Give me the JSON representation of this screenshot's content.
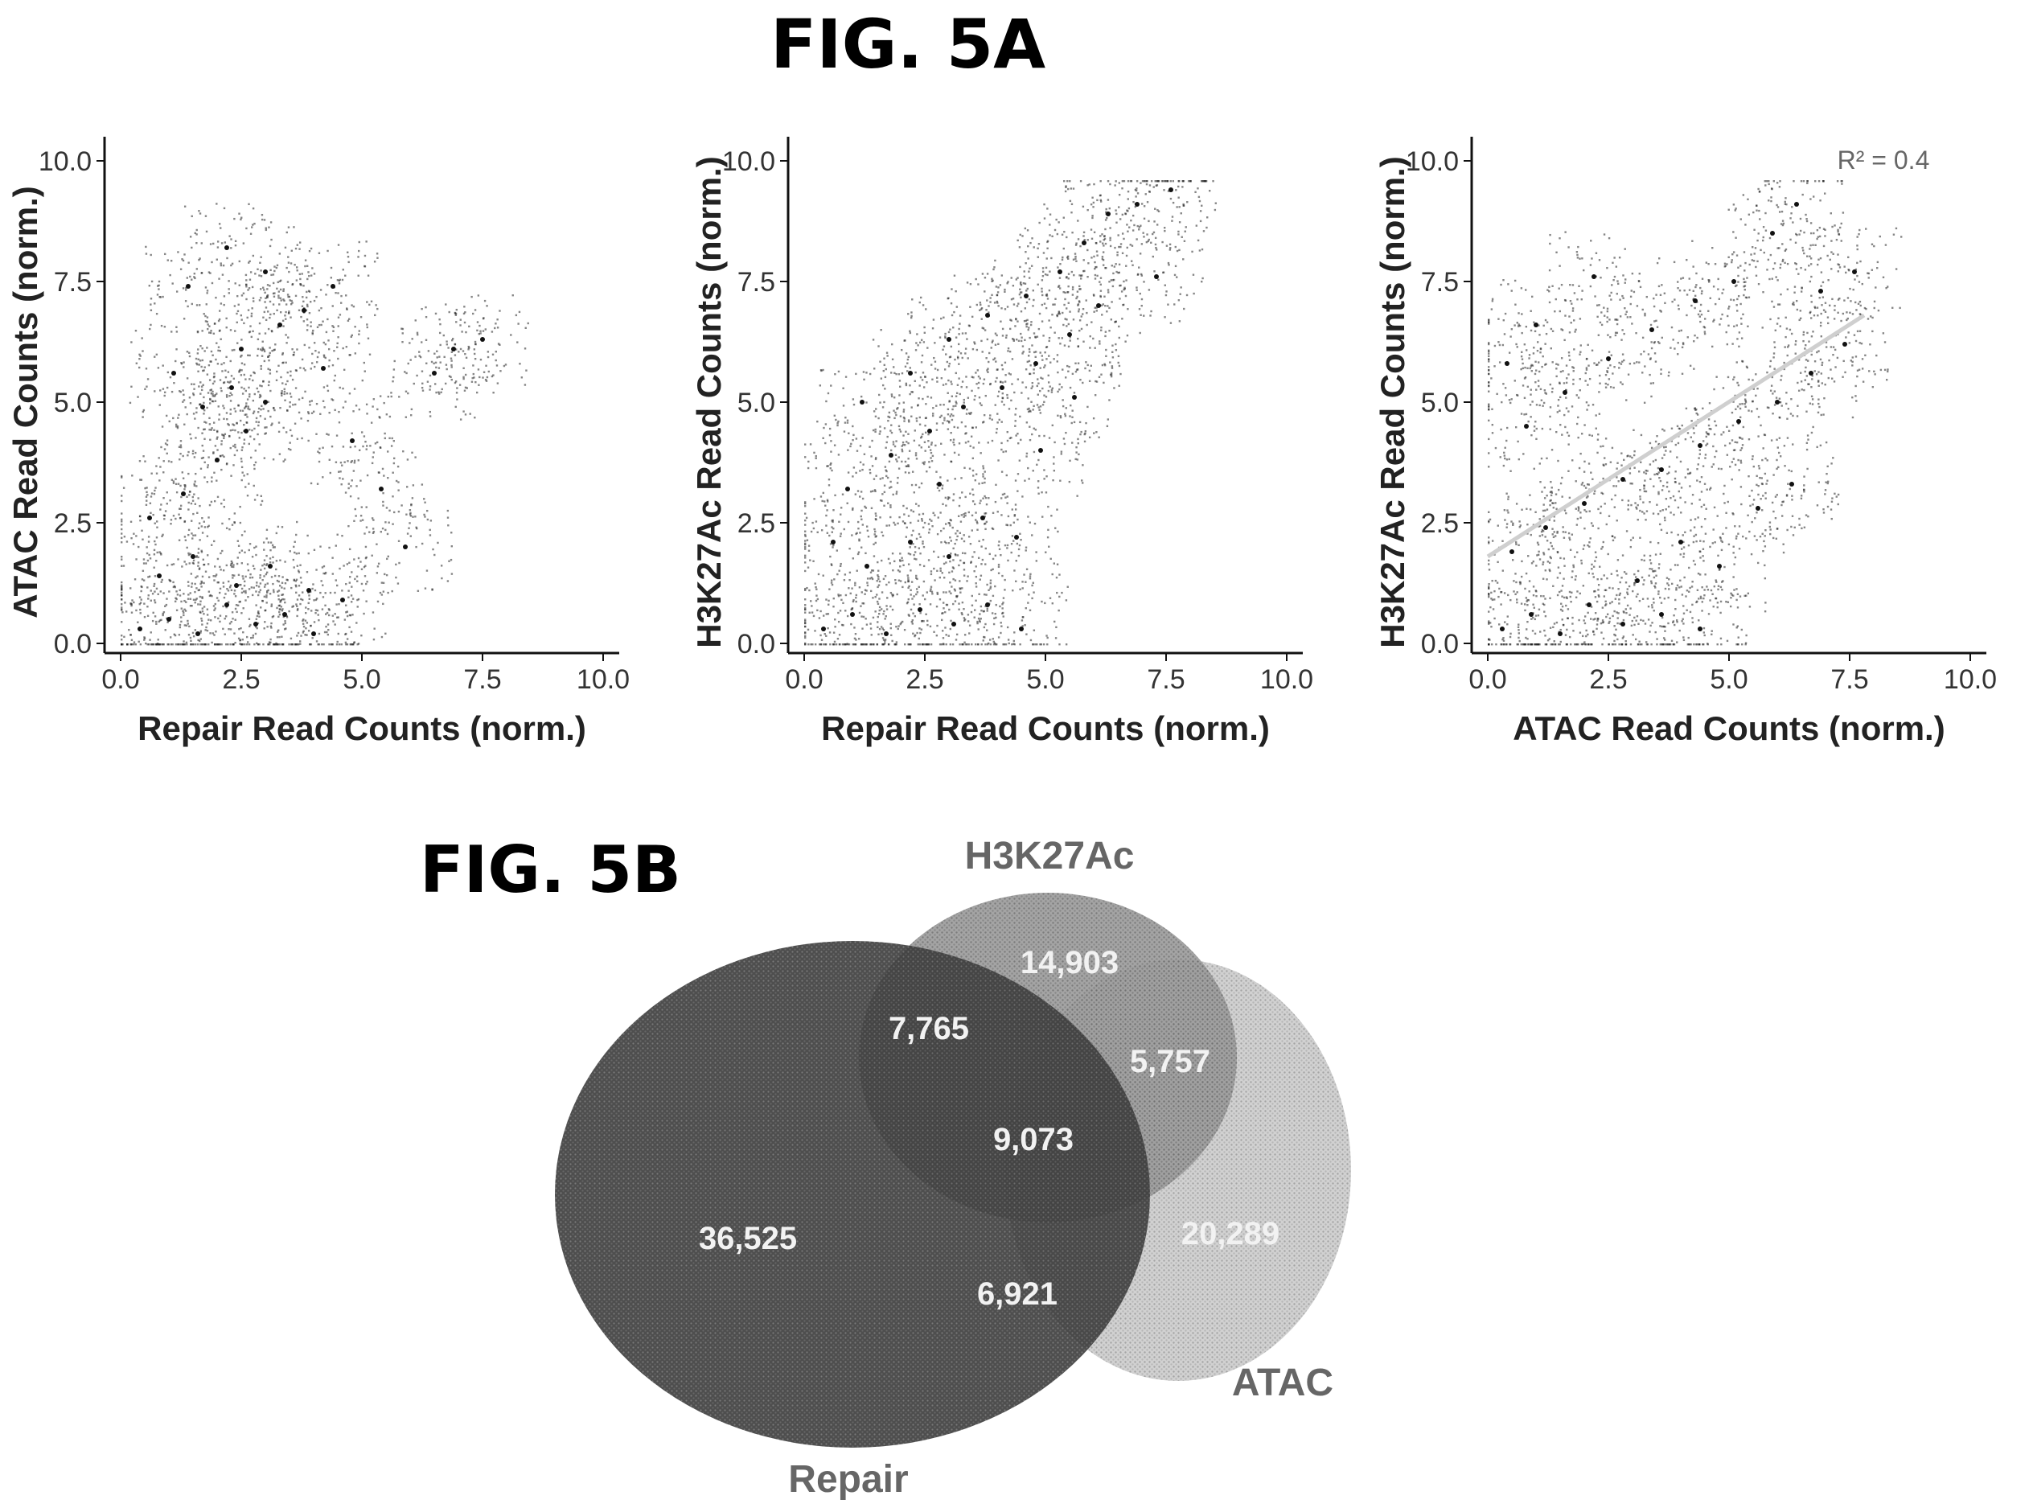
{
  "fig5a": {
    "title": "FIG. 5A"
  },
  "fig5b": {
    "title": "FIG. 5B"
  },
  "chart_data": [
    {
      "type": "scatter",
      "panel": "left",
      "xlabel": "Repair Read Counts (norm.)",
      "ylabel": "ATAC Read Counts (norm.)",
      "xlim": [
        0,
        10
      ],
      "ylim": [
        0,
        10
      ],
      "xticks": [
        "0.0",
        "2.5",
        "5.0",
        "7.5",
        "10.0"
      ],
      "yticks": [
        "0.0",
        "2.5",
        "5.0",
        "7.5",
        "10.0"
      ],
      "grid": false,
      "points": [
        {
          "x": 0.4,
          "y": 0.3
        },
        {
          "x": 1.0,
          "y": 0.5
        },
        {
          "x": 1.6,
          "y": 0.2
        },
        {
          "x": 2.2,
          "y": 0.8
        },
        {
          "x": 2.8,
          "y": 0.4
        },
        {
          "x": 3.4,
          "y": 0.6
        },
        {
          "x": 4.0,
          "y": 0.2
        },
        {
          "x": 4.6,
          "y": 0.9
        },
        {
          "x": 0.8,
          "y": 1.4
        },
        {
          "x": 1.5,
          "y": 1.8
        },
        {
          "x": 2.4,
          "y": 1.2
        },
        {
          "x": 3.1,
          "y": 1.6
        },
        {
          "x": 3.9,
          "y": 1.1
        },
        {
          "x": 0.6,
          "y": 2.6
        },
        {
          "x": 1.3,
          "y": 3.1
        },
        {
          "x": 2.0,
          "y": 3.8
        },
        {
          "x": 2.6,
          "y": 4.4
        },
        {
          "x": 1.7,
          "y": 4.9
        },
        {
          "x": 2.3,
          "y": 5.3
        },
        {
          "x": 3.0,
          "y": 5.0
        },
        {
          "x": 1.1,
          "y": 5.6
        },
        {
          "x": 2.5,
          "y": 6.1
        },
        {
          "x": 3.3,
          "y": 6.6
        },
        {
          "x": 4.2,
          "y": 5.7
        },
        {
          "x": 4.8,
          "y": 4.2
        },
        {
          "x": 5.4,
          "y": 3.2
        },
        {
          "x": 5.9,
          "y": 2.0
        },
        {
          "x": 6.5,
          "y": 5.6
        },
        {
          "x": 6.9,
          "y": 6.1
        },
        {
          "x": 7.5,
          "y": 6.3
        },
        {
          "x": 1.4,
          "y": 7.4
        },
        {
          "x": 2.2,
          "y": 8.2
        },
        {
          "x": 3.0,
          "y": 7.7
        },
        {
          "x": 3.8,
          "y": 6.9
        },
        {
          "x": 4.4,
          "y": 7.4
        }
      ]
    },
    {
      "type": "scatter",
      "panel": "middle",
      "xlabel": "Repair Read Counts (norm.)",
      "ylabel": "H3K27Ac Read Counts (norm.)",
      "xlim": [
        0,
        10
      ],
      "ylim": [
        0,
        10
      ],
      "xticks": [
        "0.0",
        "2.5",
        "5.0",
        "7.5",
        "10.0"
      ],
      "yticks": [
        "0.0",
        "2.5",
        "5.0",
        "7.5",
        "10.0"
      ],
      "grid": false,
      "points": [
        {
          "x": 0.4,
          "y": 0.3
        },
        {
          "x": 1.0,
          "y": 0.6
        },
        {
          "x": 1.7,
          "y": 0.2
        },
        {
          "x": 2.4,
          "y": 0.7
        },
        {
          "x": 3.1,
          "y": 0.4
        },
        {
          "x": 3.8,
          "y": 0.8
        },
        {
          "x": 4.5,
          "y": 0.3
        },
        {
          "x": 1.3,
          "y": 1.6
        },
        {
          "x": 2.2,
          "y": 2.1
        },
        {
          "x": 3.0,
          "y": 1.8
        },
        {
          "x": 3.7,
          "y": 2.6
        },
        {
          "x": 4.4,
          "y": 2.2
        },
        {
          "x": 0.9,
          "y": 3.2
        },
        {
          "x": 1.8,
          "y": 3.9
        },
        {
          "x": 2.6,
          "y": 4.4
        },
        {
          "x": 3.3,
          "y": 4.9
        },
        {
          "x": 4.1,
          "y": 5.3
        },
        {
          "x": 4.8,
          "y": 5.8
        },
        {
          "x": 2.2,
          "y": 5.6
        },
        {
          "x": 3.0,
          "y": 6.3
        },
        {
          "x": 3.8,
          "y": 6.8
        },
        {
          "x": 4.6,
          "y": 7.2
        },
        {
          "x": 5.3,
          "y": 7.7
        },
        {
          "x": 5.8,
          "y": 8.3
        },
        {
          "x": 6.3,
          "y": 8.9
        },
        {
          "x": 6.9,
          "y": 9.1
        },
        {
          "x": 7.6,
          "y": 9.4
        },
        {
          "x": 5.5,
          "y": 6.4
        },
        {
          "x": 6.1,
          "y": 7.0
        },
        {
          "x": 4.9,
          "y": 4.0
        },
        {
          "x": 5.6,
          "y": 5.1
        },
        {
          "x": 1.2,
          "y": 5.0
        },
        {
          "x": 0.6,
          "y": 2.1
        },
        {
          "x": 7.3,
          "y": 7.6
        },
        {
          "x": 2.8,
          "y": 3.3
        }
      ]
    },
    {
      "type": "scatter",
      "panel": "right",
      "xlabel": "ATAC Read Counts (norm.)",
      "ylabel": "H3K27Ac Read Counts (norm.)",
      "xlim": [
        0,
        10
      ],
      "ylim": [
        0,
        10
      ],
      "xticks": [
        "0.0",
        "2.5",
        "5.0",
        "7.5",
        "10.0"
      ],
      "yticks": [
        "0.0",
        "2.5",
        "5.0",
        "7.5",
        "10.0"
      ],
      "grid": false,
      "annotation": "R² = 0.4",
      "fit_line": {
        "x0": 0.0,
        "y0": 1.8,
        "x1": 7.8,
        "y1": 6.8
      },
      "points": [
        {
          "x": 0.3,
          "y": 0.3
        },
        {
          "x": 0.9,
          "y": 0.6
        },
        {
          "x": 1.5,
          "y": 0.2
        },
        {
          "x": 2.1,
          "y": 0.8
        },
        {
          "x": 2.8,
          "y": 0.4
        },
        {
          "x": 3.6,
          "y": 0.6
        },
        {
          "x": 4.4,
          "y": 0.3
        },
        {
          "x": 0.5,
          "y": 1.9
        },
        {
          "x": 1.2,
          "y": 2.4
        },
        {
          "x": 2.0,
          "y": 2.9
        },
        {
          "x": 2.8,
          "y": 3.4
        },
        {
          "x": 3.6,
          "y": 3.6
        },
        {
          "x": 4.4,
          "y": 4.1
        },
        {
          "x": 5.2,
          "y": 4.6
        },
        {
          "x": 6.0,
          "y": 5.0
        },
        {
          "x": 6.7,
          "y": 5.6
        },
        {
          "x": 7.4,
          "y": 6.2
        },
        {
          "x": 0.8,
          "y": 4.5
        },
        {
          "x": 1.6,
          "y": 5.2
        },
        {
          "x": 2.5,
          "y": 5.9
        },
        {
          "x": 3.4,
          "y": 6.5
        },
        {
          "x": 4.3,
          "y": 7.1
        },
        {
          "x": 5.1,
          "y": 7.5
        },
        {
          "x": 5.9,
          "y": 8.5
        },
        {
          "x": 6.4,
          "y": 9.1
        },
        {
          "x": 4.0,
          "y": 2.1
        },
        {
          "x": 4.8,
          "y": 1.6
        },
        {
          "x": 5.6,
          "y": 2.8
        },
        {
          "x": 6.3,
          "y": 3.3
        },
        {
          "x": 3.1,
          "y": 1.3
        },
        {
          "x": 1.0,
          "y": 6.6
        },
        {
          "x": 2.2,
          "y": 7.6
        },
        {
          "x": 6.9,
          "y": 7.3
        },
        {
          "x": 7.6,
          "y": 7.7
        },
        {
          "x": 0.4,
          "y": 5.8
        }
      ]
    },
    {
      "type": "venn",
      "sets": [
        "Repair",
        "H3K27Ac",
        "ATAC"
      ],
      "regions": [
        {
          "sets": [
            "Repair"
          ],
          "label": "36,525"
        },
        {
          "sets": [
            "H3K27Ac"
          ],
          "label": "14,903"
        },
        {
          "sets": [
            "ATAC"
          ],
          "label": "20,289"
        },
        {
          "sets": [
            "Repair",
            "H3K27Ac"
          ],
          "label": "7,765"
        },
        {
          "sets": [
            "H3K27Ac",
            "ATAC"
          ],
          "label": "5,757"
        },
        {
          "sets": [
            "Repair",
            "ATAC"
          ],
          "label": "6,921"
        },
        {
          "sets": [
            "Repair",
            "H3K27Ac",
            "ATAC"
          ],
          "label": "9,073"
        }
      ]
    }
  ]
}
